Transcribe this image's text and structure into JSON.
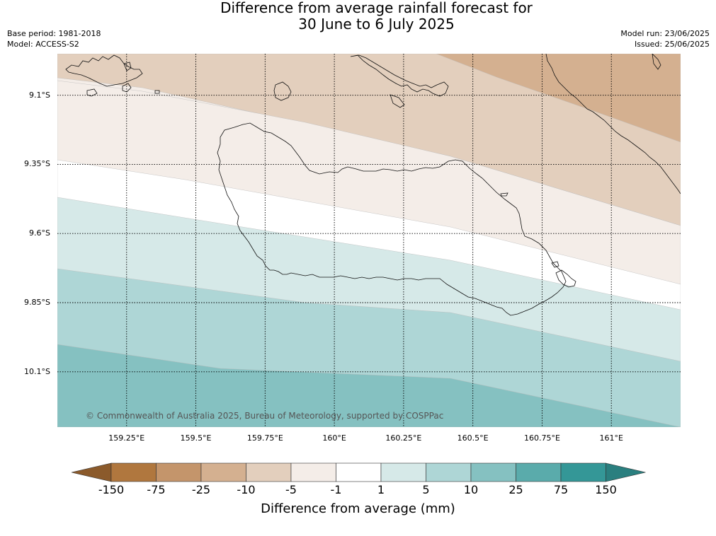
{
  "title": {
    "line1": "Difference from average rainfall forecast for",
    "line2": "30 June to 6 July 2025"
  },
  "meta_left": {
    "base_period": "Base period: 1981-2018",
    "model": "Model: ACCESS-S2"
  },
  "meta_right": {
    "model_run": "Model run: 23/06/2025",
    "issued": "Issued: 25/06/2025"
  },
  "map": {
    "lat_ticks": [
      {
        "label": "9.1°S",
        "value": -9.1
      },
      {
        "label": "9.35°S",
        "value": -9.35
      },
      {
        "label": "9.6°S",
        "value": -9.6
      },
      {
        "label": "9.85°S",
        "value": -9.85
      },
      {
        "label": "10.1°S",
        "value": -10.1
      }
    ],
    "lon_ticks": [
      {
        "label": "159.25°E",
        "value": 159.25
      },
      {
        "label": "159.5°E",
        "value": 159.5
      },
      {
        "label": "159.75°E",
        "value": 159.75
      },
      {
        "label": "160°E",
        "value": 160.0
      },
      {
        "label": "160.25°E",
        "value": 160.25
      },
      {
        "label": "160.5°E",
        "value": 160.5
      },
      {
        "label": "160.75°E",
        "value": 160.75
      },
      {
        "label": "161°E",
        "value": 161.0
      }
    ],
    "extent": {
      "lon_min": 159.0,
      "lon_max": 161.25,
      "lat_max": -8.95,
      "lat_min": -10.3
    },
    "copyright": "© Commonwealth of Australia 2025, Bureau of Meteorology, supported by COSPPac"
  },
  "colorbar": {
    "title": "Difference from average (mm)",
    "labels": [
      "-150",
      "-75",
      "-25",
      "-10",
      "-5",
      "-1",
      "1",
      "5",
      "10",
      "25",
      "75",
      "150"
    ],
    "under_color": "#8b5a2b",
    "over_color": "#2a7f7f",
    "colors": [
      "#b0773e",
      "#c4956b",
      "#d4b090",
      "#e3cfbd",
      "#f4ede8",
      "#ffffff",
      "#d6e9e8",
      "#aed6d6",
      "#85c1c1",
      "#5aabab",
      "#349797"
    ]
  }
}
